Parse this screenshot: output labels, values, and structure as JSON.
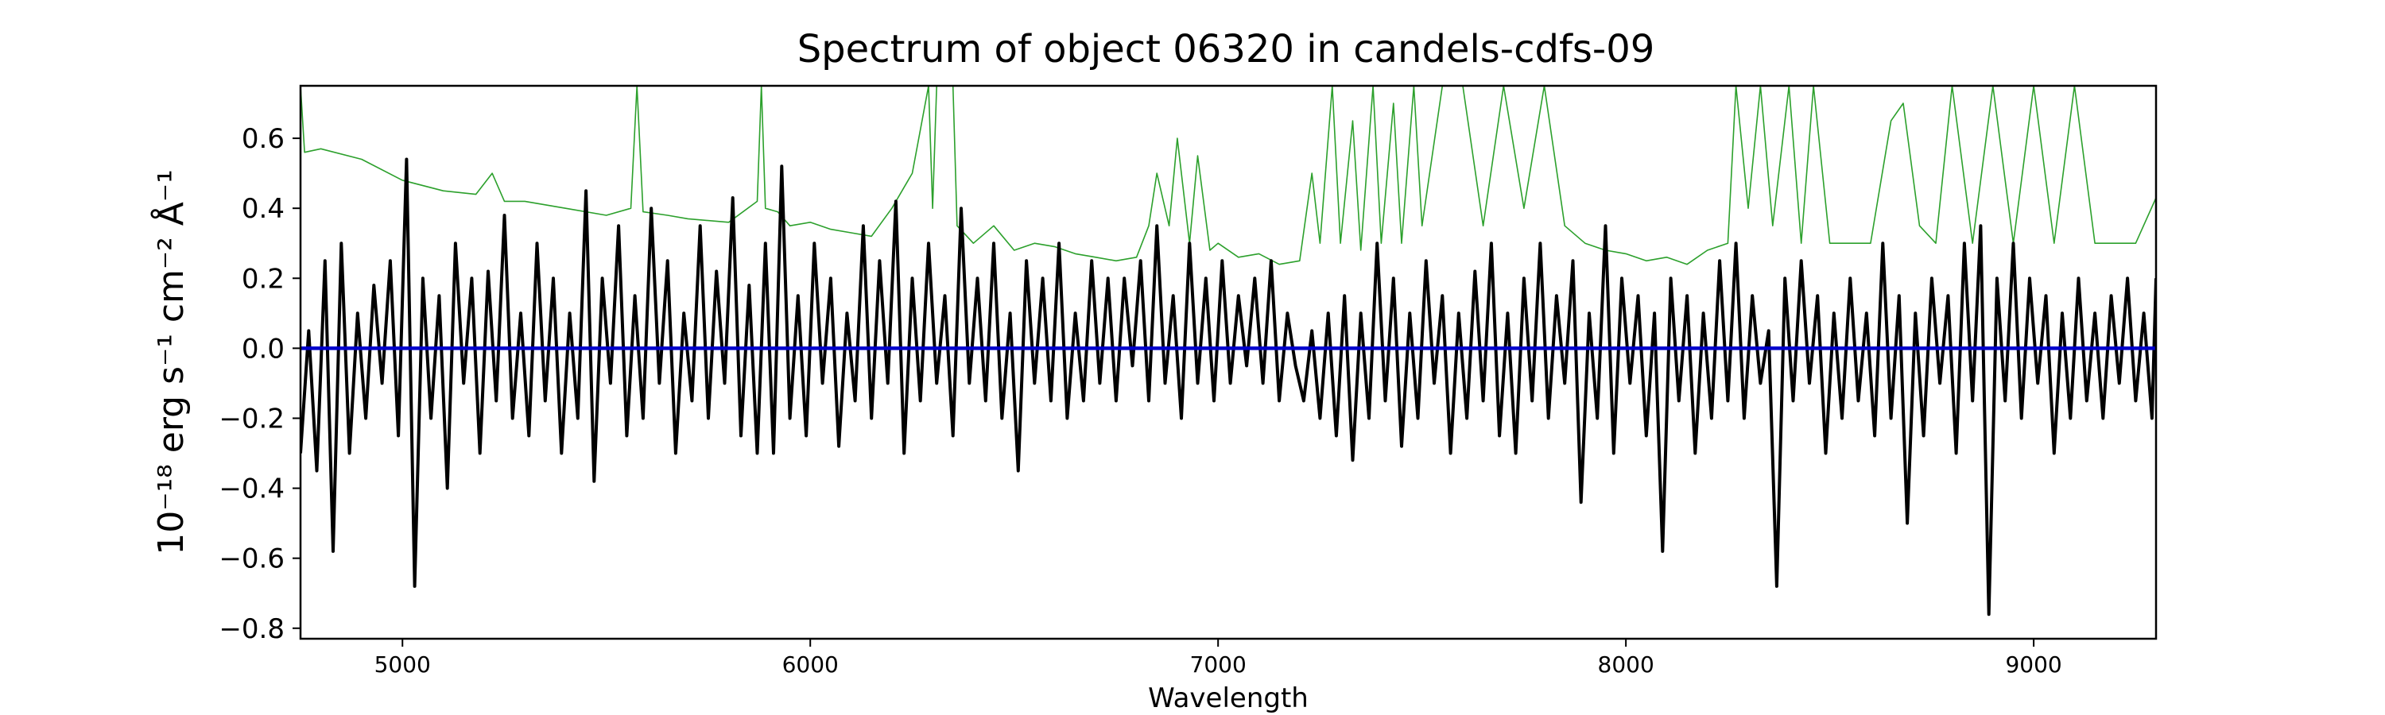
{
  "chart_data": {
    "type": "line",
    "title": "Spectrum of object 06320 in candels-cdfs-09",
    "xlabel": "Wavelength",
    "ylabel": "10⁻¹⁸ erg s⁻¹ cm⁻² Å⁻¹",
    "xlim": [
      4750,
      9300
    ],
    "ylim": [
      -0.83,
      0.75
    ],
    "x_ticks": [
      5000,
      6000,
      7000,
      8000,
      9000
    ],
    "x_tick_labels": [
      "5000",
      "6000",
      "7000",
      "8000",
      "9000"
    ],
    "y_ticks": [
      0.6,
      0.4,
      0.2,
      0.0,
      -0.2,
      -0.4,
      -0.6,
      -0.8
    ],
    "y_tick_labels": [
      "0.6",
      "0.4",
      "0.2",
      "0.0",
      "−0.2",
      "−0.4",
      "−0.6",
      "−0.8"
    ],
    "grid": false,
    "legend": "none",
    "series": [
      {
        "color": "#2ca02c",
        "x": [
          4750,
          4760,
          4800,
          4900,
          5000,
          5100,
          5180,
          5220,
          5250,
          5300,
          5400,
          5500,
          5560,
          5575,
          5590,
          5650,
          5700,
          5800,
          5870,
          5880,
          5890,
          5920,
          5950,
          6000,
          6050,
          6100,
          6150,
          6200,
          6250,
          6290,
          6300,
          6310,
          6350,
          6360,
          6400,
          6450,
          6500,
          6550,
          6600,
          6650,
          6700,
          6750,
          6800,
          6830,
          6850,
          6880,
          6900,
          6930,
          6950,
          6980,
          7000,
          7050,
          7100,
          7150,
          7200,
          7230,
          7250,
          7280,
          7300,
          7330,
          7350,
          7380,
          7400,
          7430,
          7450,
          7480,
          7500,
          7550,
          7600,
          7650,
          7700,
          7750,
          7800,
          7850,
          7900,
          7950,
          8000,
          8050,
          8100,
          8150,
          8200,
          8250,
          8270,
          8300,
          8330,
          8360,
          8400,
          8430,
          8460,
          8500,
          8550,
          8600,
          8650,
          8680,
          8720,
          8760,
          8800,
          8850,
          8900,
          8950,
          9000,
          9050,
          9100,
          9150,
          9200,
          9250,
          9300
        ],
        "y": [
          0.75,
          0.56,
          0.57,
          0.54,
          0.48,
          0.45,
          0.44,
          0.5,
          0.42,
          0.42,
          0.4,
          0.38,
          0.4,
          0.75,
          0.39,
          0.38,
          0.37,
          0.36,
          0.42,
          0.75,
          0.4,
          0.39,
          0.35,
          0.36,
          0.34,
          0.33,
          0.32,
          0.4,
          0.5,
          0.75,
          0.4,
          0.75,
          0.75,
          0.35,
          0.3,
          0.35,
          0.28,
          0.3,
          0.29,
          0.27,
          0.26,
          0.25,
          0.26,
          0.35,
          0.5,
          0.35,
          0.6,
          0.3,
          0.55,
          0.28,
          0.3,
          0.26,
          0.27,
          0.24,
          0.25,
          0.5,
          0.3,
          0.75,
          0.3,
          0.65,
          0.28,
          0.75,
          0.3,
          0.7,
          0.3,
          0.75,
          0.35,
          0.75,
          0.75,
          0.35,
          0.75,
          0.4,
          0.75,
          0.35,
          0.3,
          0.28,
          0.27,
          0.25,
          0.26,
          0.24,
          0.28,
          0.3,
          0.75,
          0.4,
          0.75,
          0.35,
          0.75,
          0.3,
          0.75,
          0.3,
          0.3,
          0.3,
          0.65,
          0.7,
          0.35,
          0.3,
          0.75,
          0.3,
          0.75,
          0.3,
          0.75,
          0.3,
          0.75,
          0.3,
          0.3,
          0.3,
          0.43
        ]
      },
      {
        "color": "#000000",
        "x": [
          4750,
          4770,
          4790,
          4810,
          4830,
          4850,
          4870,
          4890,
          4910,
          4930,
          4950,
          4970,
          4990,
          5010,
          5030,
          5050,
          5070,
          5090,
          5110,
          5130,
          5150,
          5170,
          5190,
          5210,
          5230,
          5250,
          5270,
          5290,
          5310,
          5330,
          5350,
          5370,
          5390,
          5410,
          5430,
          5450,
          5470,
          5490,
          5510,
          5530,
          5550,
          5570,
          5590,
          5610,
          5630,
          5650,
          5670,
          5690,
          5710,
          5730,
          5750,
          5770,
          5790,
          5810,
          5830,
          5850,
          5870,
          5890,
          5910,
          5930,
          5950,
          5970,
          5990,
          6010,
          6030,
          6050,
          6070,
          6090,
          6110,
          6130,
          6150,
          6170,
          6190,
          6210,
          6230,
          6250,
          6270,
          6290,
          6310,
          6330,
          6350,
          6370,
          6390,
          6410,
          6430,
          6450,
          6470,
          6490,
          6510,
          6530,
          6550,
          6570,
          6590,
          6610,
          6630,
          6650,
          6670,
          6690,
          6710,
          6730,
          6750,
          6770,
          6790,
          6810,
          6830,
          6850,
          6870,
          6890,
          6910,
          6930,
          6950,
          6970,
          6990,
          7010,
          7030,
          7050,
          7070,
          7090,
          7110,
          7130,
          7150,
          7170,
          7190,
          7210,
          7230,
          7250,
          7270,
          7290,
          7310,
          7330,
          7350,
          7370,
          7390,
          7410,
          7430,
          7450,
          7470,
          7490,
          7510,
          7530,
          7550,
          7570,
          7590,
          7610,
          7630,
          7650,
          7670,
          7690,
          7710,
          7730,
          7750,
          7770,
          7790,
          7810,
          7830,
          7850,
          7870,
          7890,
          7910,
          7930,
          7950,
          7970,
          7990,
          8010,
          8030,
          8050,
          8070,
          8090,
          8110,
          8130,
          8150,
          8170,
          8190,
          8210,
          8230,
          8250,
          8270,
          8290,
          8310,
          8330,
          8350,
          8370,
          8390,
          8410,
          8430,
          8450,
          8470,
          8490,
          8510,
          8530,
          8550,
          8570,
          8590,
          8610,
          8630,
          8650,
          8670,
          8690,
          8710,
          8730,
          8750,
          8770,
          8790,
          8810,
          8830,
          8850,
          8870,
          8890,
          8910,
          8930,
          8950,
          8970,
          8990,
          9010,
          9030,
          9050,
          9070,
          9090,
          9110,
          9130,
          9150,
          9170,
          9190,
          9210,
          9230,
          9250,
          9270,
          9290,
          9300
        ],
        "y": [
          -0.3,
          0.05,
          -0.35,
          0.25,
          -0.58,
          0.3,
          -0.3,
          0.1,
          -0.2,
          0.18,
          -0.1,
          0.25,
          -0.25,
          0.54,
          -0.68,
          0.2,
          -0.2,
          0.15,
          -0.4,
          0.3,
          -0.1,
          0.2,
          -0.3,
          0.22,
          -0.15,
          0.38,
          -0.2,
          0.1,
          -0.25,
          0.3,
          -0.15,
          0.2,
          -0.3,
          0.1,
          -0.2,
          0.45,
          -0.38,
          0.2,
          -0.1,
          0.35,
          -0.25,
          0.15,
          -0.2,
          0.4,
          -0.1,
          0.25,
          -0.3,
          0.1,
          -0.15,
          0.35,
          -0.2,
          0.22,
          -0.1,
          0.43,
          -0.25,
          0.18,
          -0.3,
          0.3,
          -0.3,
          0.52,
          -0.2,
          0.15,
          -0.25,
          0.3,
          -0.1,
          0.2,
          -0.28,
          0.1,
          -0.15,
          0.35,
          -0.2,
          0.25,
          -0.1,
          0.42,
          -0.3,
          0.2,
          -0.15,
          0.3,
          -0.1,
          0.15,
          -0.25,
          0.4,
          -0.1,
          0.2,
          -0.15,
          0.3,
          -0.2,
          0.1,
          -0.35,
          0.25,
          -0.1,
          0.2,
          -0.15,
          0.3,
          -0.2,
          0.1,
          -0.15,
          0.25,
          -0.1,
          0.2,
          -0.15,
          0.2,
          -0.05,
          0.25,
          -0.15,
          0.35,
          -0.1,
          0.15,
          -0.2,
          0.3,
          -0.1,
          0.2,
          -0.15,
          0.25,
          -0.1,
          0.15,
          -0.05,
          0.2,
          -0.1,
          0.25,
          -0.15,
          0.1,
          -0.05,
          -0.15,
          0.05,
          -0.2,
          0.1,
          -0.25,
          0.15,
          -0.32,
          0.1,
          -0.2,
          0.3,
          -0.15,
          0.2,
          -0.28,
          0.1,
          -0.2,
          0.25,
          -0.1,
          0.15,
          -0.3,
          0.1,
          -0.2,
          0.22,
          -0.15,
          0.3,
          -0.25,
          0.1,
          -0.3,
          0.2,
          -0.15,
          0.3,
          -0.2,
          0.15,
          -0.1,
          0.25,
          -0.44,
          0.1,
          -0.2,
          0.35,
          -0.3,
          0.2,
          -0.1,
          0.15,
          -0.25,
          0.1,
          -0.58,
          0.2,
          -0.15,
          0.15,
          -0.3,
          0.1,
          -0.2,
          0.25,
          -0.15,
          0.3,
          -0.2,
          0.15,
          -0.1,
          0.05,
          -0.68,
          0.2,
          -0.15,
          0.25,
          -0.1,
          0.15,
          -0.3,
          0.1,
          -0.2,
          0.2,
          -0.15,
          0.1,
          -0.25,
          0.3,
          -0.2,
          0.15,
          -0.5,
          0.1,
          -0.25,
          0.2,
          -0.1,
          0.15,
          -0.3,
          0.3,
          -0.15,
          0.35,
          -0.76,
          0.2,
          -0.15,
          0.3,
          -0.2,
          0.2,
          -0.1,
          0.15,
          -0.3,
          0.1,
          -0.2,
          0.2,
          -0.15,
          0.1,
          -0.2,
          0.15,
          -0.1,
          0.2,
          -0.15,
          0.1,
          -0.2,
          0.2
        ]
      },
      {
        "color": "#0000cc",
        "x": [
          4750,
          9300
        ],
        "y": [
          0.0,
          0.0
        ]
      }
    ]
  }
}
